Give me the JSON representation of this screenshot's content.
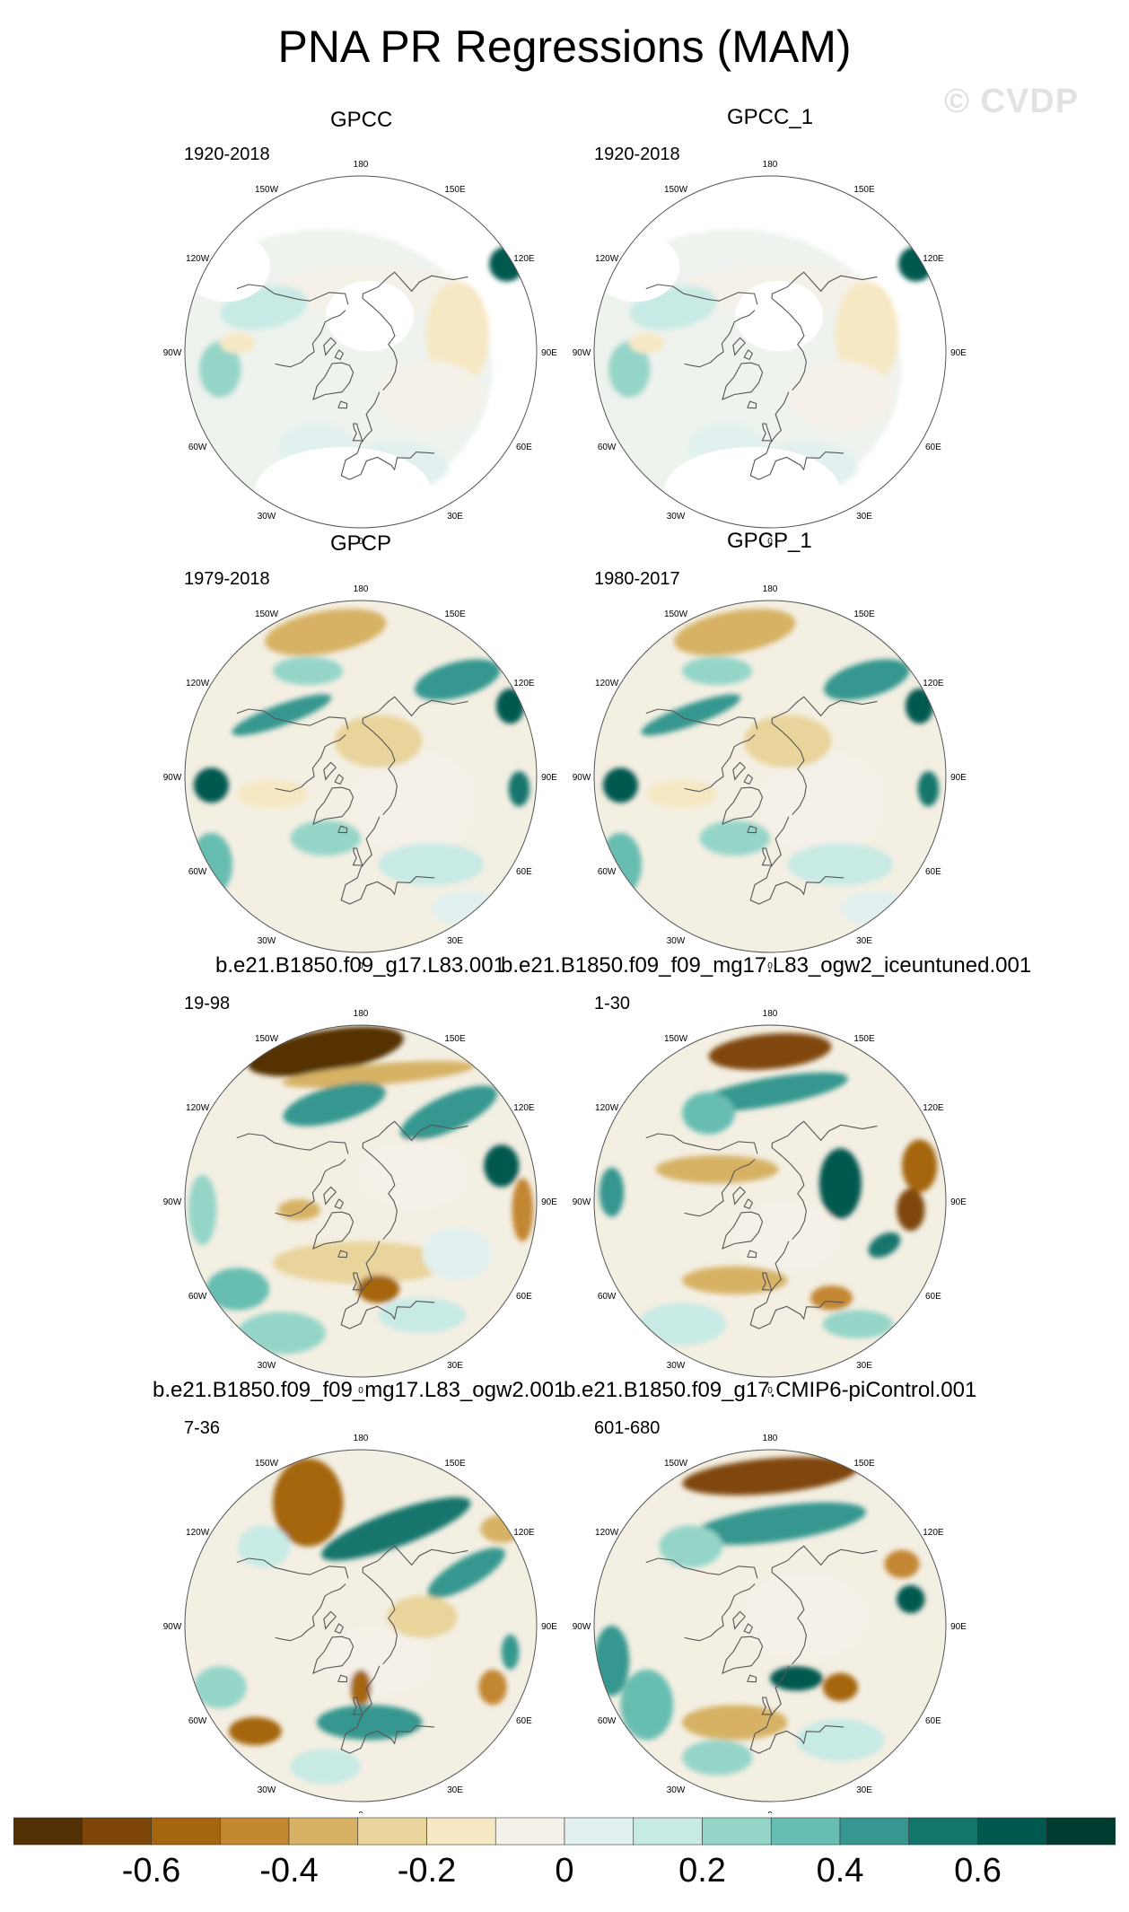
{
  "title": "PNA PR Regressions (MAM)",
  "watermark": "© CVDP",
  "panels": [
    {
      "name": "GPCC",
      "period": "1920-2018",
      "pattern": "obs_gpcc"
    },
    {
      "name": "GPCC_1",
      "period": "1920-2018",
      "pattern": "obs_gpcc"
    },
    {
      "name": "GPCP",
      "period": "1979-2018",
      "pattern": "obs_gpcp"
    },
    {
      "name": "GPCP_1",
      "period": "1980-2017",
      "pattern": "obs_gpcp"
    },
    {
      "name": "b.e21.B1850.f09_g17.L83.001",
      "period": "19-98",
      "pattern": "model_a"
    },
    {
      "name": "b.e21.B1850.f09_f09_mg17.L83_ogw2_iceuntuned.001",
      "period": "1-30",
      "pattern": "model_b"
    },
    {
      "name": "b.e21.B1850.f09_f09_mg17.L83_ogw2.001",
      "period": "7-36",
      "pattern": "model_c"
    },
    {
      "name": "b.e21.B1850.f09_g17.CMIP6-piControl.001",
      "period": "601-680",
      "pattern": "model_d"
    }
  ],
  "longitude_labels": [
    "180",
    "150E",
    "120E",
    "90E",
    "60E",
    "30E",
    "0",
    "30W",
    "60W",
    "90W",
    "120W",
    "150W"
  ],
  "colorbar": {
    "colors": [
      "#543005",
      "#7f4609",
      "#a5660f",
      "#c38631",
      "#d7b265",
      "#e9d49b",
      "#f6e8c3",
      "#f5f1e8",
      "#e2f1ef",
      "#c7eae5",
      "#94d5c8",
      "#67bdb1",
      "#35978f",
      "#13766d",
      "#01584f",
      "#003c30"
    ],
    "tick_labels": [
      "-0.6",
      "-0.4",
      "-0.2",
      "0",
      "0.2",
      "0.4",
      "0.6"
    ],
    "tick_values": [
      -0.6,
      -0.4,
      -0.2,
      0,
      0.2,
      0.4,
      0.6
    ],
    "bins": [
      -0.8,
      -0.7,
      -0.6,
      -0.5,
      -0.4,
      -0.3,
      -0.2,
      -0.1,
      0,
      0.1,
      0.2,
      0.3,
      0.4,
      0.5,
      0.6,
      0.7,
      0.8
    ]
  }
}
